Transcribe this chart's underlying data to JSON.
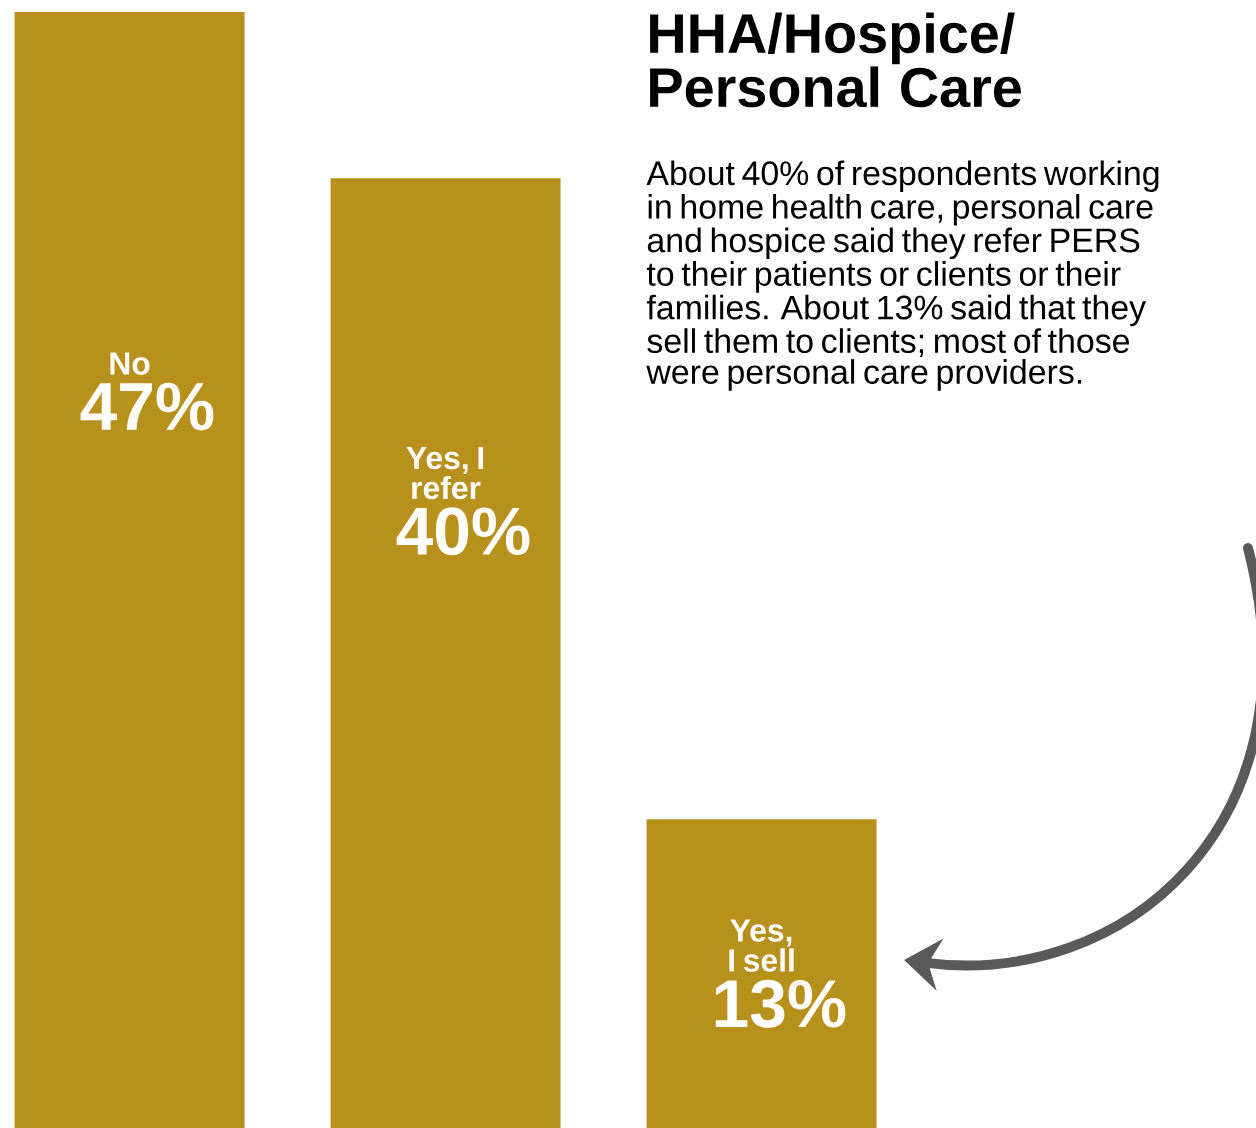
{
  "chart_data": {
    "type": "bar",
    "title": "HHA/Hospice/ Personal Care",
    "categories": [
      "No",
      "Yes, I refer",
      "Yes, I sell"
    ],
    "values": [
      47,
      40,
      13
    ],
    "value_labels": [
      "47%",
      "40%",
      "13%"
    ],
    "color": "#b8901c",
    "annotations": [
      "About 40% of respondents working in home health care, personal care and hospice said they refer PERS to their patients or clients or their families. About 13% said that they sell them to clients; most of those were personal care providers."
    ]
  }
}
